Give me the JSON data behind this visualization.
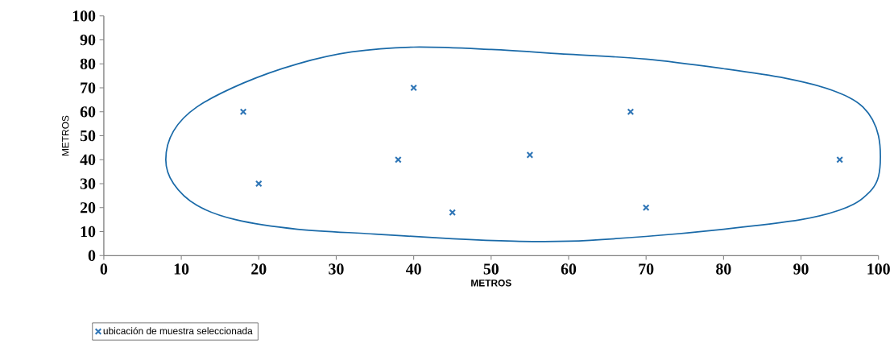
{
  "chart_data": {
    "type": "scatter",
    "xlabel": "METROS",
    "ylabel": "METROS",
    "xlim": [
      0,
      100
    ],
    "ylim": [
      0,
      100
    ],
    "xticks": [
      0,
      10,
      20,
      30,
      40,
      50,
      60,
      70,
      80,
      90,
      100
    ],
    "yticks": [
      0,
      10,
      20,
      30,
      40,
      50,
      60,
      70,
      80,
      90,
      100
    ],
    "grid": false,
    "legend": "bottom left",
    "marker": "cross",
    "series": [
      {
        "name": "ubicación de muestra seleccionada",
        "color": "#2e75b6",
        "x": [
          18,
          40,
          68,
          20,
          38,
          55,
          95,
          45,
          70
        ],
        "values": [
          60,
          70,
          60,
          30,
          40,
          42,
          40,
          18,
          20
        ]
      }
    ]
  }
}
